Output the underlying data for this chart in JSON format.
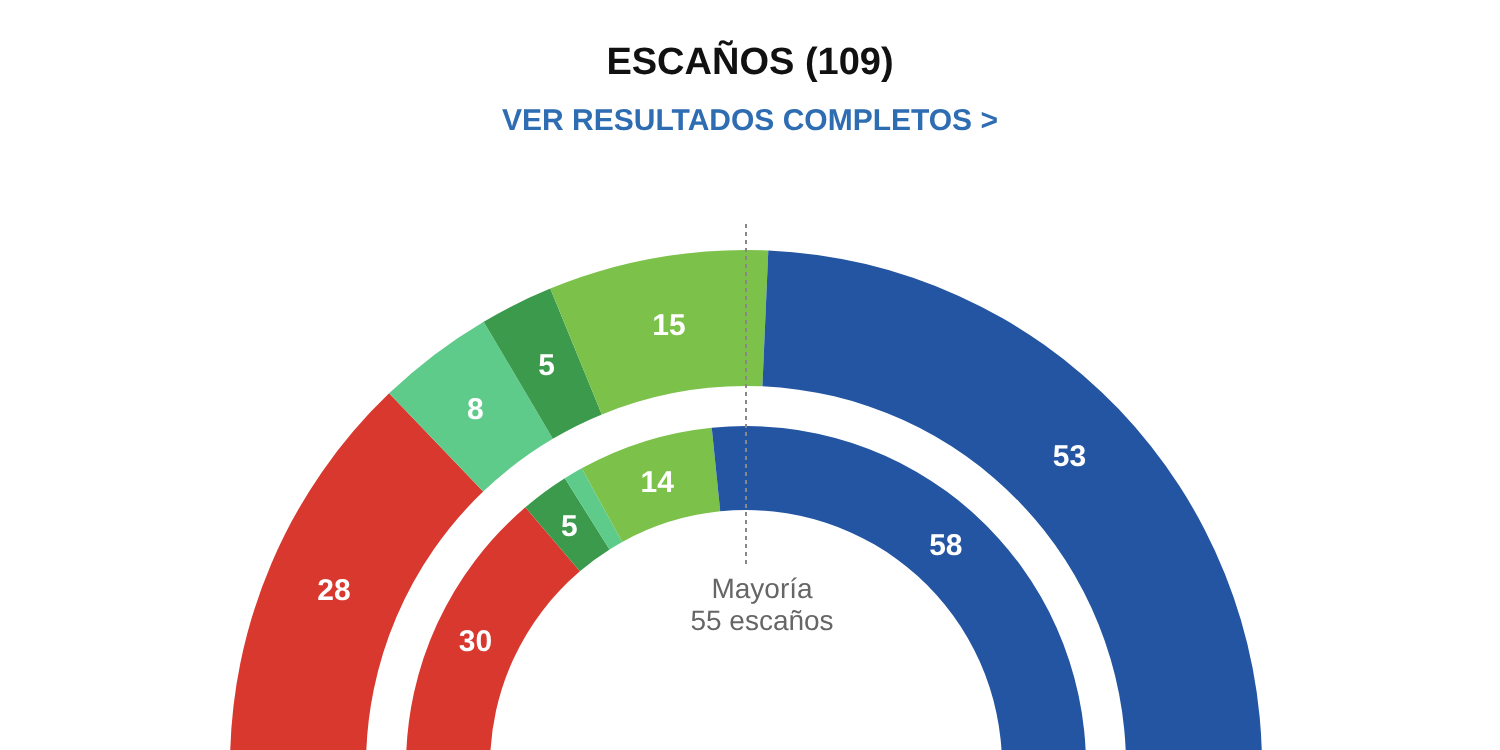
{
  "chart_data": {
    "type": "donut",
    "title": "ESCAÑOS (109)",
    "subtitle": "VER RESULTADOS COMPLETOS >",
    "categories": [
      null,
      null,
      null,
      null,
      null
    ],
    "data_labels": true,
    "series": [
      {
        "values": [
          28,
          8,
          5,
          15,
          53
        ],
        "colors": [
          "#d9382f",
          "#5ecb8b",
          "#3b9a4b",
          "#7cc14a",
          "#2355a2"
        ]
      },
      {
        "values": [
          30,
          5,
          2,
          14,
          58
        ],
        "colors": [
          "#d9382f",
          "#3b9a4b",
          "#5ecb8b",
          "#7cc14a",
          "#2355a2"
        ],
        "value_labels": [
          "30",
          "5",
          null,
          "14",
          "58"
        ]
      }
    ],
    "annotations": [
      "Mayoría\n55 escaños"
    ]
  }
}
